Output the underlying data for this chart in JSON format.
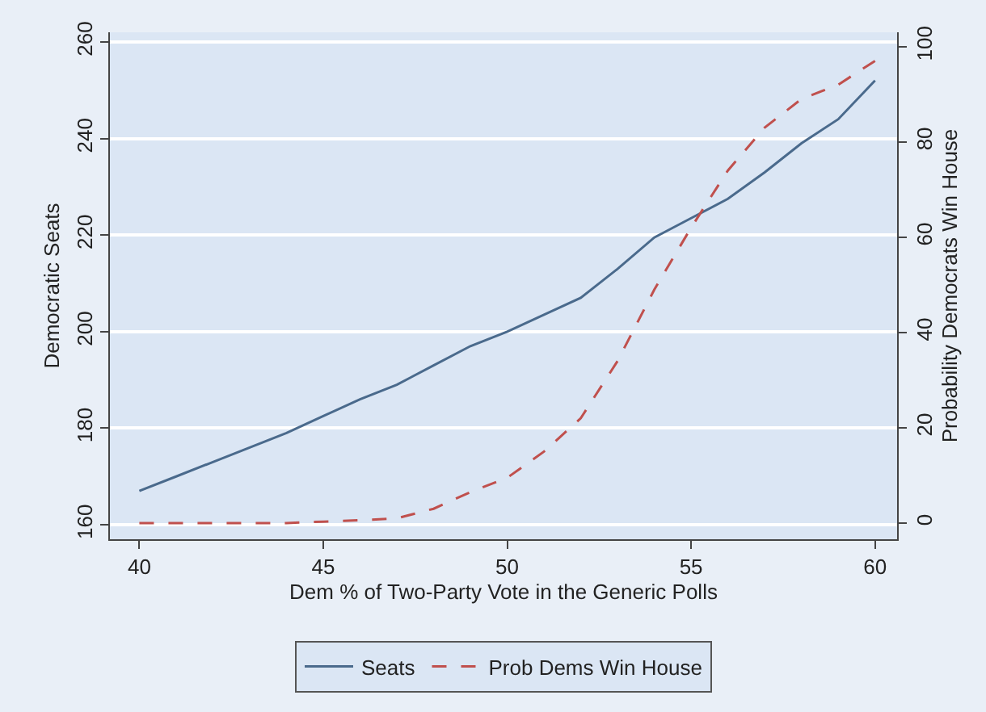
{
  "chart_data": {
    "type": "line",
    "xlabel": "Dem % of Two-Party Vote in the Generic Polls",
    "ylabel": "Democratic Seats",
    "y2label": "Probability Democrats Win House",
    "x": [
      40,
      41,
      42,
      43,
      44,
      45,
      46,
      47,
      48,
      49,
      50,
      51,
      52,
      53,
      54,
      55,
      56,
      57,
      58,
      59,
      60
    ],
    "series": [
      {
        "name": "Seats",
        "color": "#4a6a8c",
        "line_style": "solid",
        "values": [
          167,
          170,
          173,
          176,
          179,
          182.5,
          186,
          189,
          193,
          197,
          200,
          203.5,
          207,
          213,
          219.5,
          223.5,
          227.5,
          233,
          239,
          244,
          252
        ]
      },
      {
        "name": "Prob Dems Win House",
        "color": "#c0504d",
        "line_style": "dashed",
        "axis": "y2",
        "values": [
          0,
          0,
          0,
          0,
          0,
          0.3,
          0.6,
          1,
          3,
          6.5,
          9.5,
          15,
          22,
          34,
          49,
          62,
          74,
          83,
          89,
          92,
          97
        ]
      }
    ],
    "xlim": [
      39.2,
      60.6
    ],
    "xticks": [
      40,
      45,
      50,
      55,
      60
    ],
    "ylim": [
      157,
      262
    ],
    "yticks": [
      160,
      180,
      200,
      220,
      240,
      260
    ],
    "y2lim": [
      -3.4,
      103
    ],
    "y2ticks": [
      0,
      20,
      40,
      60,
      80,
      100
    ],
    "grid": "y",
    "legend": "bottom"
  }
}
